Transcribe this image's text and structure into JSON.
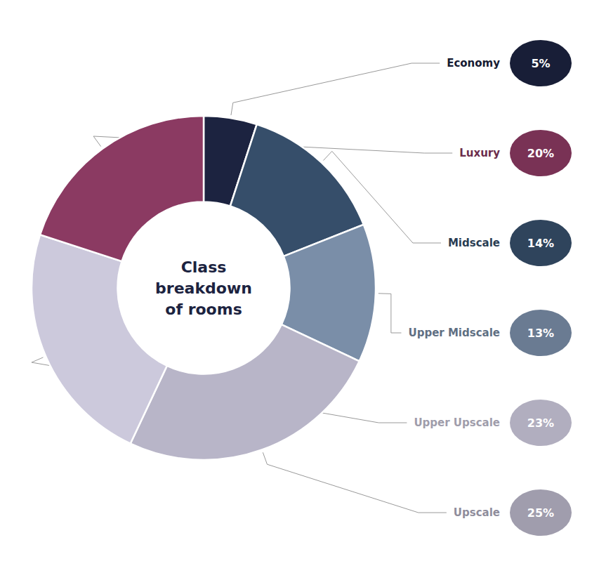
{
  "chart_data": {
    "type": "pie",
    "title": "Class\nbreakdown\nof rooms",
    "categories": [
      "Economy",
      "Midscale",
      "Upper Midscale",
      "Upscale",
      "Upper Upscale",
      "Luxury"
    ],
    "values": [
      5,
      14,
      13,
      25,
      23,
      20
    ],
    "value_labels": [
      "5%",
      "14%",
      "13%",
      "25%",
      "23%",
      "20%"
    ],
    "colors": [
      "#1C2340",
      "#364E6A",
      "#7A8EA8",
      "#B8B5C8",
      "#CCC9DC",
      "#8B3A62"
    ],
    "data_labels": true
  }
}
